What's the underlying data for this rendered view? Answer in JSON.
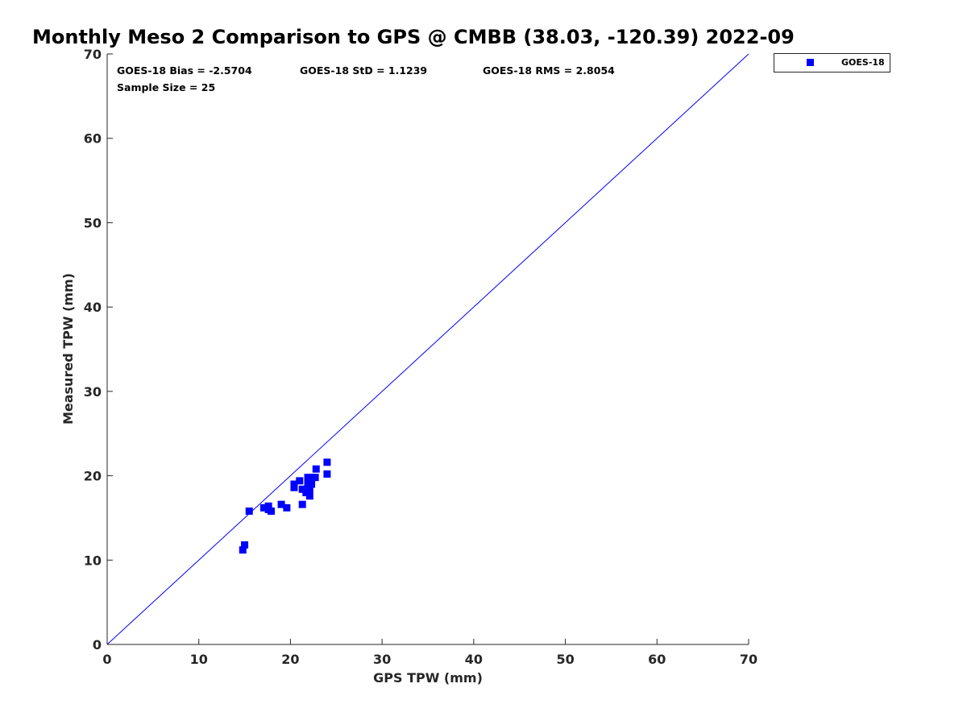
{
  "chart_data": {
    "type": "scatter",
    "title": "Monthly Meso 2 Comparison to GPS @ CMBB (38.03, -120.39) 2022-09",
    "xlabel": "GPS TPW (mm)",
    "ylabel": "Measured TPW (mm)",
    "xlim": [
      0,
      70
    ],
    "ylim": [
      0,
      70
    ],
    "xticks": [
      "0",
      "10",
      "20",
      "30",
      "40",
      "50",
      "60",
      "70"
    ],
    "yticks": [
      "0",
      "10",
      "20",
      "30",
      "40",
      "50",
      "60",
      "70"
    ],
    "grid": false,
    "legend_position": "outside-top-right",
    "stats": {
      "bias": "GOES-18 Bias = -2.5704",
      "std": "GOES-18 StD = 1.1239",
      "rms": "GOES-18 RMS = 2.8054",
      "sample": "Sample Size = 25"
    },
    "reference_line": {
      "name": "1:1 line",
      "color": "#0000ff",
      "x": [
        0,
        70
      ],
      "y": [
        0,
        70
      ]
    },
    "series": [
      {
        "name": "GOES-18",
        "color": "#0000ff",
        "marker": "square",
        "points": [
          [
            14.8,
            11.2
          ],
          [
            15.0,
            11.8
          ],
          [
            15.5,
            15.8
          ],
          [
            17.1,
            16.2
          ],
          [
            17.6,
            16.0
          ],
          [
            17.6,
            16.4
          ],
          [
            17.9,
            15.8
          ],
          [
            19.0,
            16.6
          ],
          [
            19.6,
            16.2
          ],
          [
            20.4,
            18.6
          ],
          [
            20.4,
            19.0
          ],
          [
            21.0,
            19.4
          ],
          [
            21.3,
            18.4
          ],
          [
            21.3,
            16.6
          ],
          [
            21.7,
            18.0
          ],
          [
            21.9,
            19.8
          ],
          [
            21.9,
            19.0
          ],
          [
            22.1,
            17.6
          ],
          [
            22.1,
            18.4
          ],
          [
            22.3,
            19.0
          ],
          [
            22.3,
            19.8
          ],
          [
            22.7,
            19.8
          ],
          [
            22.8,
            20.8
          ],
          [
            24.0,
            21.6
          ],
          [
            24.0,
            20.2
          ]
        ]
      }
    ]
  }
}
